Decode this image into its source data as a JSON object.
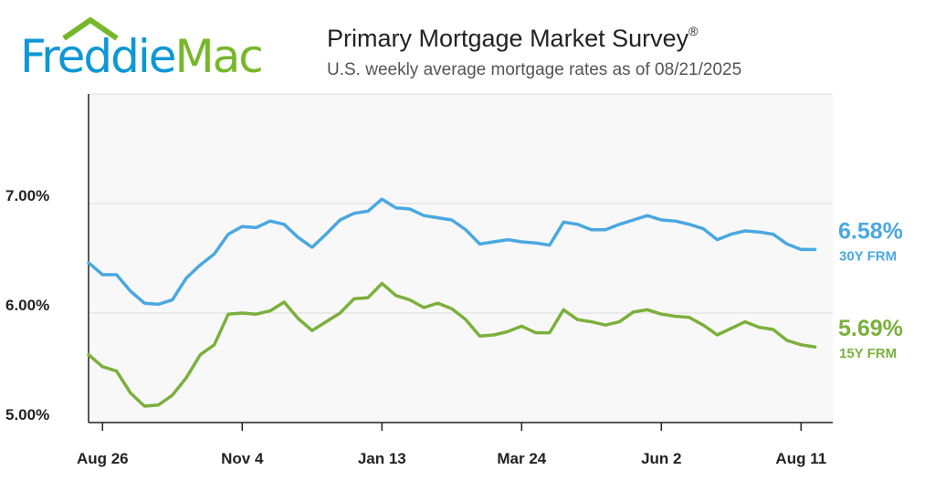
{
  "logo": {
    "word1": "Freddie",
    "word2": "Mac"
  },
  "header": {
    "title": "Primary Mortgage Market Survey",
    "title_mark": "®",
    "subtitle": "U.S. weekly average mortgage rates as of 08/21/2025"
  },
  "colors": {
    "frm30": "#4aa8e0",
    "frm15": "#7bb03c",
    "plot_bg": "#f8f8f8",
    "grid": "#dcdcdc",
    "logo_blue": "#0e97d6",
    "logo_green": "#76b82a"
  },
  "chart_data": {
    "type": "line",
    "ylim": [
      5.0,
      7.0
    ],
    "yticks": [
      {
        "value": 5.0,
        "label": "5.00%"
      },
      {
        "value": 6.0,
        "label": "6.00%"
      },
      {
        "value": 7.0,
        "label": "7.00%"
      }
    ],
    "xticks": [
      {
        "index": 1,
        "label": "Aug 26"
      },
      {
        "index": 11,
        "label": "Nov 4"
      },
      {
        "index": 21,
        "label": "Jan 13"
      },
      {
        "index": 31,
        "label": "Mar 24"
      },
      {
        "index": 41,
        "label": "Jun 2"
      },
      {
        "index": 51,
        "label": "Aug 11"
      }
    ],
    "grid": true,
    "series": [
      {
        "name": "30Y FRM",
        "end_label": "6.58%",
        "color": "#4aa8e0",
        "values": [
          6.46,
          6.35,
          6.35,
          6.2,
          6.09,
          6.08,
          6.12,
          6.32,
          6.44,
          6.54,
          6.72,
          6.79,
          6.78,
          6.84,
          6.81,
          6.69,
          6.6,
          6.72,
          6.85,
          6.91,
          6.93,
          7.04,
          6.96,
          6.95,
          6.89,
          6.87,
          6.85,
          6.76,
          6.63,
          6.65,
          6.67,
          6.65,
          6.64,
          6.62,
          6.83,
          6.81,
          6.76,
          6.76,
          6.81,
          6.85,
          6.89,
          6.85,
          6.84,
          6.81,
          6.77,
          6.67,
          6.72,
          6.75,
          6.74,
          6.72,
          6.63,
          6.58,
          6.58
        ]
      },
      {
        "name": "15Y FRM",
        "end_label": "5.69%",
        "color": "#7bb03c",
        "values": [
          5.62,
          5.51,
          5.47,
          5.27,
          5.15,
          5.16,
          5.25,
          5.41,
          5.62,
          5.71,
          5.99,
          6.0,
          5.99,
          6.02,
          6.1,
          5.95,
          5.84,
          5.92,
          6.0,
          6.13,
          6.14,
          6.27,
          6.16,
          6.12,
          6.05,
          6.09,
          6.04,
          5.94,
          5.79,
          5.8,
          5.83,
          5.88,
          5.82,
          5.82,
          6.03,
          5.94,
          5.92,
          5.89,
          5.92,
          6.01,
          6.03,
          5.99,
          5.97,
          5.96,
          5.89,
          5.8,
          5.86,
          5.92,
          5.87,
          5.85,
          5.75,
          5.71,
          5.69
        ]
      }
    ]
  }
}
